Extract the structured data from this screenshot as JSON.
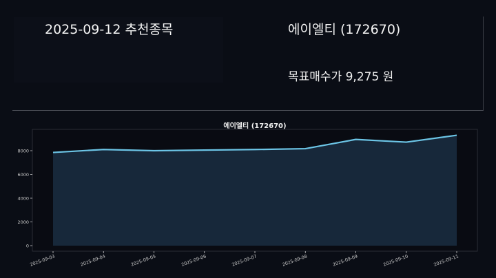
{
  "header": {
    "title": "2025-09-12 추천종목",
    "stock_name": "에이엘티 (172670)",
    "target_price": "목표매수가 9,275 원"
  },
  "colors": {
    "background": "#0a0d15",
    "line": "#6cc5e6",
    "fill": "#17283a",
    "axis": "#3a3d45"
  },
  "chart_data": {
    "type": "area",
    "title": "에이엘티 (172670)",
    "xlabel": "",
    "ylabel": "",
    "categories": [
      "2025-09-03",
      "2025-09-04",
      "2025-09-05",
      "2025-09-06",
      "2025-09-07",
      "2025-09-08",
      "2025-09-09",
      "2025-09-10",
      "2025-09-11"
    ],
    "values": [
      7850,
      8100,
      8000,
      8050,
      8100,
      8170,
      8950,
      8720,
      9300
    ],
    "yticks": [
      0,
      2000,
      4000,
      6000,
      8000
    ],
    "ylim": [
      -500,
      9800
    ],
    "grid": false,
    "legend": "none"
  }
}
